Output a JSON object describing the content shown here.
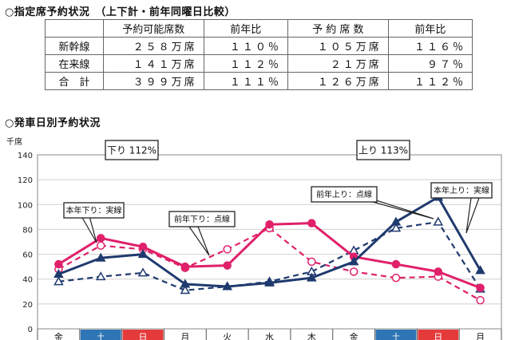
{
  "heading_table": "○指定席予約状況　（上下計・前年同曜日比較）",
  "heading_chart": "○発車日別予約状況",
  "table": {
    "headers": [
      "",
      "予約可能席数",
      "前年比",
      "予 約 席 数",
      "前年比"
    ],
    "rows": [
      {
        "label": "新幹線",
        "cells": [
          "２５８万席",
          "１１０％",
          "１０５万席",
          "１１６％"
        ]
      },
      {
        "label": "在来線",
        "cells": [
          "１４１万席",
          "１１２％",
          "２１万席",
          "９７％"
        ]
      },
      {
        "label": "合　計",
        "cells": [
          "３９９万席",
          "１１１％",
          "１２６万席",
          "１１２％"
        ]
      }
    ]
  },
  "chart_data": {
    "type": "line",
    "ylabel": "千席",
    "ylim": [
      0,
      140
    ],
    "yticks": [
      0,
      20,
      40,
      60,
      80,
      100,
      120,
      140
    ],
    "grid": true,
    "n_points": 11,
    "partial_xtick_labels": [
      "金",
      "土",
      "日",
      "月",
      "火",
      "水",
      "木",
      "金",
      "土",
      "日",
      "月"
    ],
    "xtick_colors": [
      "#ffffff",
      "#2e75b6",
      "#e53a3a",
      "#ffffff",
      "#ffffff",
      "#ffffff",
      "#ffffff",
      "#ffffff",
      "#2e75b6",
      "#e53a3a",
      "#ffffff"
    ],
    "boxes": [
      {
        "text": "下り 112%"
      },
      {
        "text": "上り 113%"
      }
    ],
    "annotations": [
      {
        "text": "本年下り：実線"
      },
      {
        "text": "前年下り：点線"
      },
      {
        "text": "前年上り：点線"
      },
      {
        "text": "本年上り：実線"
      }
    ],
    "series": [
      {
        "name": "本年下り",
        "color": "#e0206a",
        "dash": false,
        "marker": "circle-filled",
        "values": [
          52,
          73,
          66,
          50,
          51,
          84,
          85,
          58,
          52,
          46,
          33
        ]
      },
      {
        "name": "前年下り",
        "color": "#e0206a",
        "dash": true,
        "marker": "circle-open",
        "values": [
          48,
          67,
          64,
          49,
          64,
          81,
          54,
          46,
          41,
          42,
          23
        ]
      },
      {
        "name": "本年上り",
        "color": "#1f3a6e",
        "dash": false,
        "marker": "triangle-filled",
        "values": [
          44,
          57,
          60,
          36,
          34,
          37,
          41,
          54,
          86,
          106,
          47
        ]
      },
      {
        "name": "前年上り",
        "color": "#1f3a6e",
        "dash": true,
        "marker": "triangle-open",
        "values": [
          38,
          42,
          45,
          31,
          34,
          38,
          46,
          63,
          81,
          86,
          32
        ]
      }
    ]
  }
}
